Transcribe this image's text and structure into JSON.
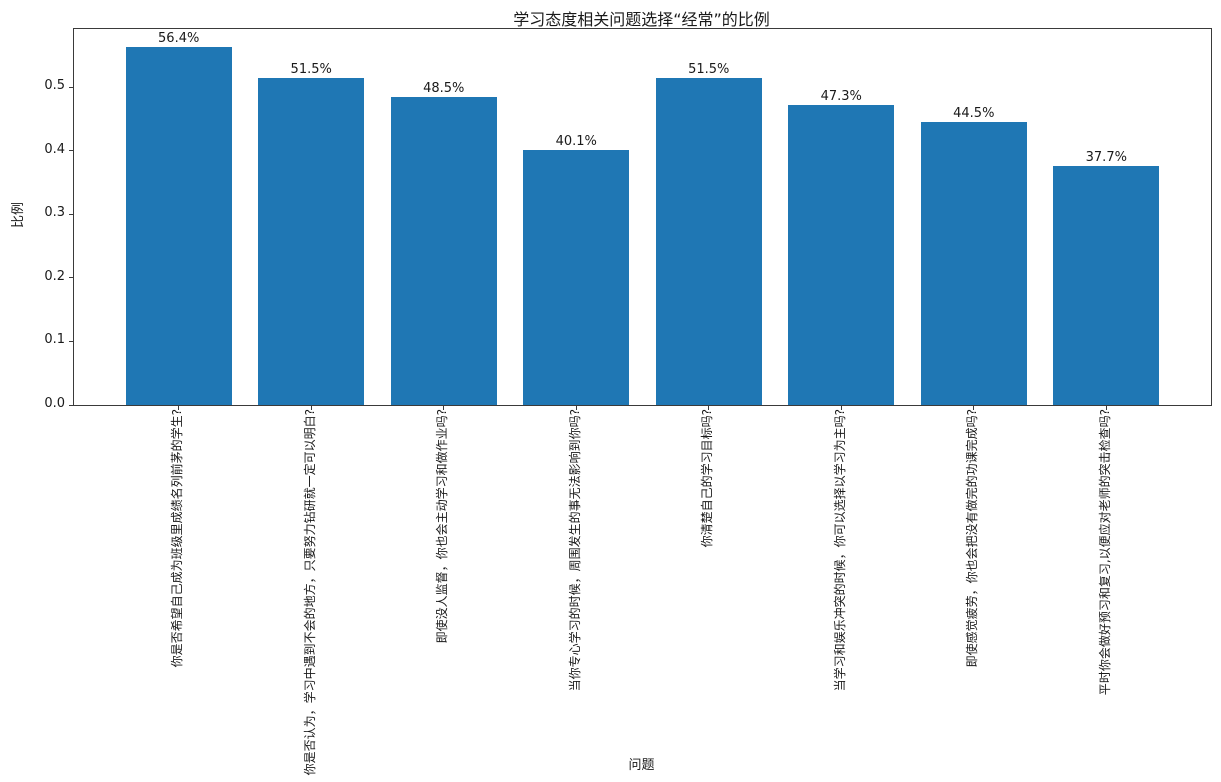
{
  "chart_data": {
    "type": "bar",
    "title": "学习态度相关问题选择“经常”的比例",
    "xlabel": "问题",
    "ylabel": "比例",
    "categories": [
      "你是否希望自己成为班级里成绩名列前茅的学生?",
      "你是否认为，学习中遇到不会的地方，只要努力钻研就一定可以明白?",
      "即使没人监督，你也会主动学习和做作业吗?",
      "当你专心学习的时候，周围发生的事无法影响到你吗?",
      "你清楚自己的学习目标吗?",
      "当学习和娱乐冲突的时候，你可以选择以学习为主吗?",
      "即使感觉疲劳，你也会把没有做完的功课完成吗?",
      "平时你会做好预习和复习,以便应对老师的突击检查吗?"
    ],
    "values": [
      0.564,
      0.515,
      0.485,
      0.401,
      0.515,
      0.473,
      0.445,
      0.377
    ],
    "bar_labels": [
      "56.4%",
      "51.5%",
      "48.5%",
      "40.1%",
      "51.5%",
      "47.3%",
      "44.5%",
      "37.7%"
    ],
    "yticks": [
      0.0,
      0.1,
      0.2,
      0.3,
      0.4,
      0.5
    ],
    "ytick_labels": [
      "0.0",
      "0.1",
      "0.2",
      "0.3",
      "0.4",
      "0.5"
    ],
    "ylim": [
      0,
      0.592
    ],
    "bar_width_fraction": 0.8,
    "grid": false,
    "legend": null,
    "colors": {
      "bar": "#1f77b4",
      "text": "#1a1a1a",
      "spine": "#3a3a3a",
      "background": "#ffffff"
    }
  }
}
